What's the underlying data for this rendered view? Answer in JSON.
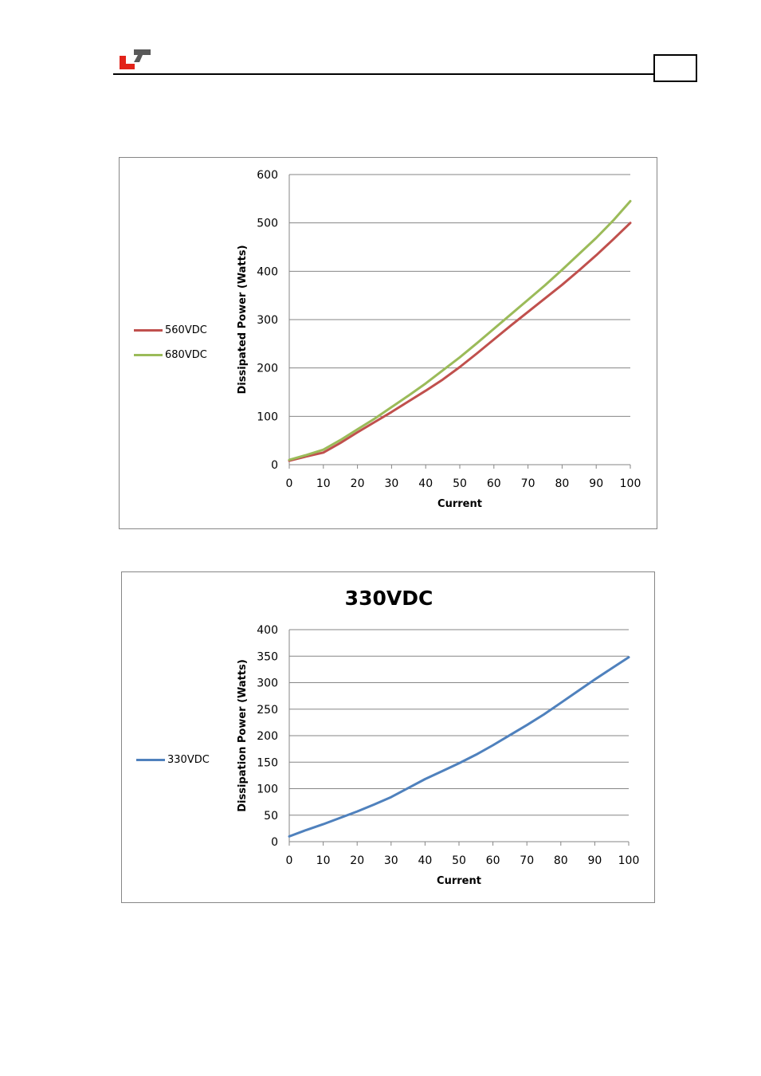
{
  "header": {
    "logo": "company-logo-icon",
    "page_number": ""
  },
  "colors": {
    "s560": "#C0504D",
    "s680": "#9BBB59",
    "s330": "#4F81BD",
    "grid": "#868686"
  },
  "chart_data": [
    {
      "type": "line",
      "title": "",
      "xlabel": "Current",
      "ylabel": "Dissipated Power (Watts)",
      "xlim": [
        0,
        100
      ],
      "ylim": [
        0,
        600
      ],
      "xticks": [
        0,
        10,
        20,
        30,
        40,
        50,
        60,
        70,
        80,
        90,
        100
      ],
      "yticks": [
        0,
        100,
        200,
        300,
        400,
        500,
        600
      ],
      "grid": true,
      "legend": "left",
      "x": [
        0,
        5,
        10,
        15,
        20,
        25,
        30,
        35,
        40,
        45,
        50,
        55,
        60,
        65,
        70,
        75,
        80,
        85,
        90,
        95,
        100
      ],
      "series": [
        {
          "name": "560VDC",
          "color": "#C0504D",
          "values": [
            8,
            17,
            25,
            45,
            67,
            88,
            109,
            131,
            153,
            176,
            202,
            230,
            259,
            288,
            316,
            344,
            372,
            402,
            433,
            466,
            500
          ]
        },
        {
          "name": "680VDC",
          "color": "#9BBB59",
          "values": [
            10,
            20,
            31,
            51,
            73,
            95,
            119,
            143,
            168,
            195,
            222,
            251,
            281,
            311,
            341,
            371,
            403,
            436,
            469,
            505,
            545
          ]
        }
      ]
    },
    {
      "type": "line",
      "title": "330VDC",
      "xlabel": "Current",
      "ylabel": "Dissipation Power (Watts)",
      "xlim": [
        0,
        100
      ],
      "ylim": [
        0,
        400
      ],
      "xticks": [
        0,
        10,
        20,
        30,
        40,
        50,
        60,
        70,
        80,
        90,
        100
      ],
      "yticks": [
        0,
        50,
        100,
        150,
        200,
        250,
        300,
        350,
        400
      ],
      "grid": true,
      "legend": "left",
      "x": [
        0,
        5,
        10,
        15,
        20,
        25,
        30,
        35,
        40,
        45,
        50,
        55,
        60,
        65,
        70,
        75,
        80,
        85,
        90,
        95,
        100
      ],
      "series": [
        {
          "name": "330VDC",
          "color": "#4F81BD",
          "values": [
            10,
            22,
            33,
            45,
            57,
            70,
            84,
            101,
            118,
            133,
            148,
            164,
            182,
            201,
            220,
            240,
            262,
            284,
            306,
            327,
            348
          ]
        }
      ]
    }
  ]
}
